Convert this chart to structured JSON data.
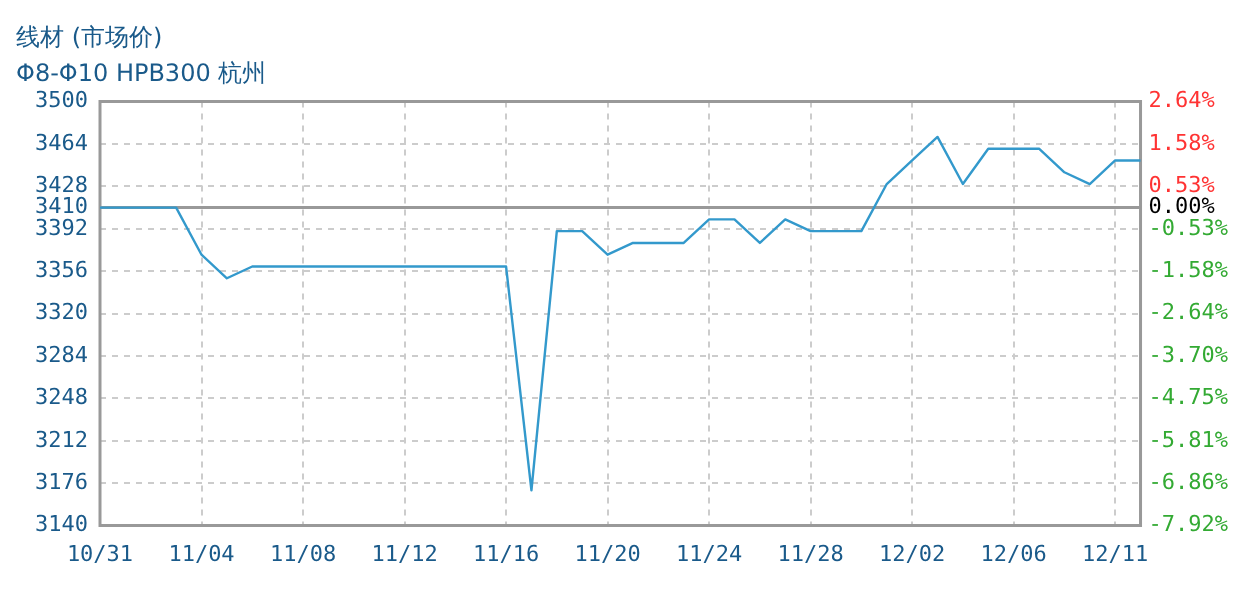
{
  "chart_data": {
    "type": "line",
    "title": "线材 (市场价)",
    "subtitle": "Φ8-Φ10 HPB300 杭州",
    "categories": [
      "10/31",
      null,
      null,
      null,
      "11/04",
      null,
      null,
      null,
      "11/08",
      null,
      null,
      null,
      "11/12",
      null,
      null,
      null,
      "11/16",
      null,
      null,
      null,
      "11/20",
      null,
      null,
      null,
      "11/24",
      null,
      null,
      null,
      "11/28",
      null,
      null,
      null,
      "12/02",
      null,
      null,
      null,
      "12/06",
      null,
      null,
      null,
      "12/11",
      null
    ],
    "series": [
      {
        "color": "#3399cc",
        "values": [
          3410,
          3410,
          3410,
          3410,
          3370,
          3350,
          3360,
          3360,
          3360,
          3360,
          3360,
          3360,
          3360,
          3360,
          3360,
          3360,
          3360,
          3170,
          3390,
          3390,
          3370,
          3380,
          3380,
          3380,
          3400,
          3400,
          3380,
          3400,
          3390,
          3390,
          3390,
          3430,
          3450,
          3470,
          3430,
          3460,
          3460,
          3460,
          3440,
          3430,
          3450,
          3450
        ]
      }
    ],
    "ylim": [
      3140,
      3500
    ],
    "yticks": [
      3140,
      3176,
      3212,
      3248,
      3284,
      3320,
      3356,
      3392,
      3410,
      3428,
      3464,
      3500
    ],
    "y2lim": [
      -7.92,
      2.64
    ],
    "y2ticks": [
      {
        "value": -7.92,
        "label": "-7.92%"
      },
      {
        "value": -6.86,
        "label": "-6.86%"
      },
      {
        "value": -5.81,
        "label": "-5.81%"
      },
      {
        "value": -4.75,
        "label": "-4.75%"
      },
      {
        "value": -3.7,
        "label": "-3.70%"
      },
      {
        "value": -2.64,
        "label": "-2.64%"
      },
      {
        "value": -1.58,
        "label": "-1.58%"
      },
      {
        "value": -0.53,
        "label": "-0.53%"
      },
      {
        "value": 0,
        "label": "0.00%"
      },
      {
        "value": 0.53,
        "label": "0.53%"
      },
      {
        "value": 1.58,
        "label": "1.58%"
      },
      {
        "value": 2.64,
        "label": "2.64%"
      }
    ],
    "ref_lines": [
      {
        "axis": "y",
        "value": 3410,
        "color": "#999999"
      }
    ],
    "grid": true,
    "legend": false,
    "marker": "none",
    "line_style": "solid"
  }
}
